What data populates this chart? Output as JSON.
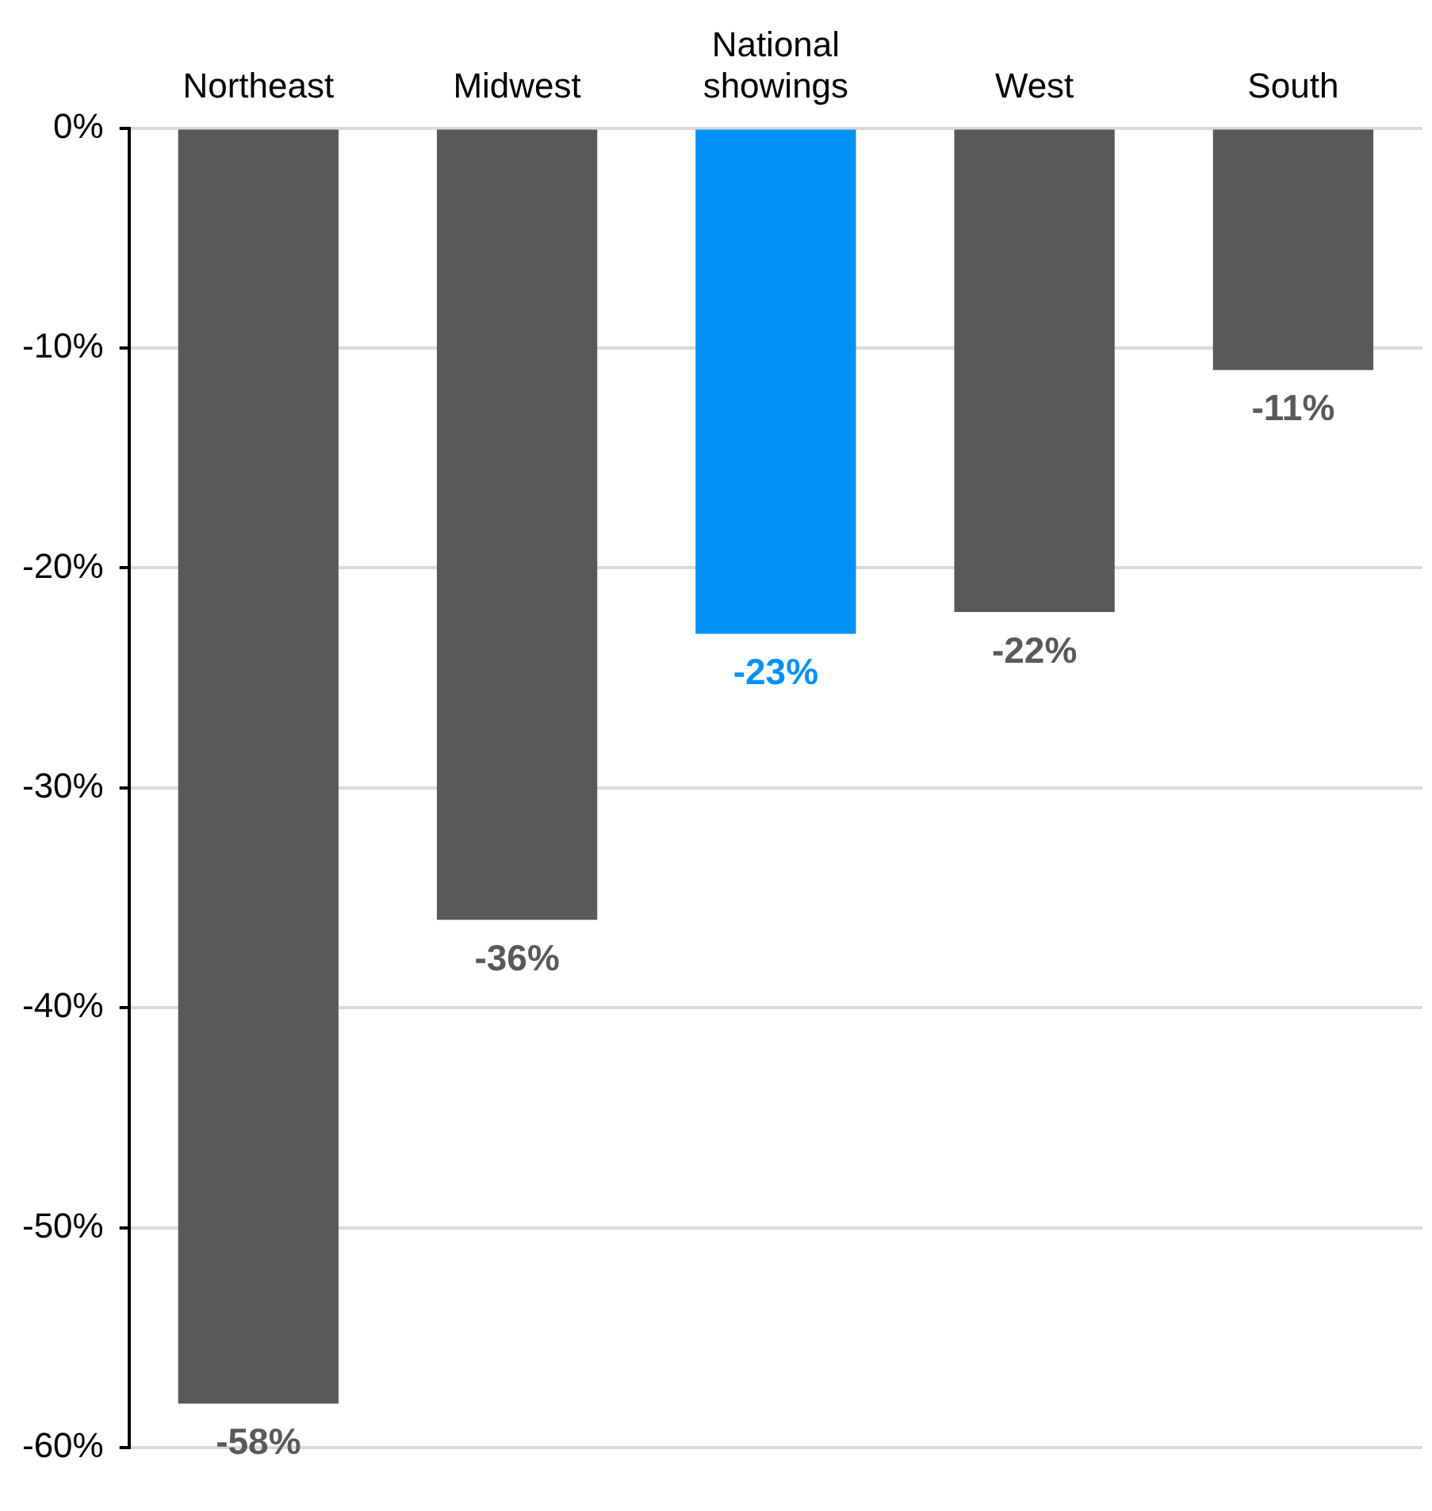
{
  "chart_data": {
    "type": "bar",
    "categories": [
      "Northeast",
      "Midwest",
      "National showings",
      "West",
      "South"
    ],
    "values": [
      -58,
      -36,
      -23,
      -22,
      -11
    ],
    "colors": [
      "#58595b",
      "#58595b",
      "#0091f7",
      "#58595b",
      "#58595b"
    ],
    "value_labels": [
      "-58%",
      "-36%",
      "-23%",
      "-22%",
      "-11%"
    ],
    "ylim": [
      -60,
      0
    ],
    "yticks": [
      {
        "value": 0,
        "label": "0%"
      },
      {
        "value": -10,
        "label": "-10%"
      },
      {
        "value": -20,
        "label": "-20%"
      },
      {
        "value": -30,
        "label": "-30%"
      },
      {
        "value": -40,
        "label": "-40%"
      },
      {
        "value": -50,
        "label": "-50%"
      },
      {
        "value": -60,
        "label": "-60%"
      }
    ],
    "grid": "y",
    "legend": false
  }
}
